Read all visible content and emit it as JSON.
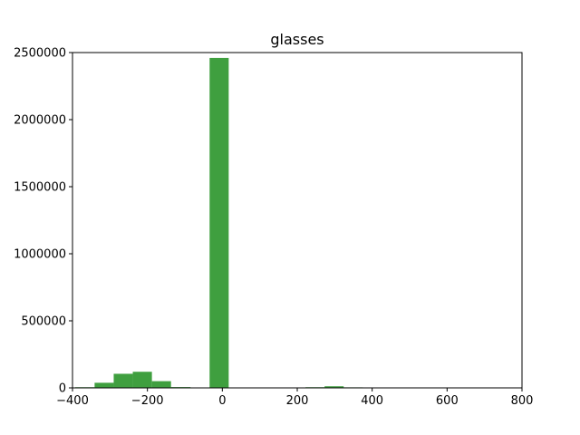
{
  "chart_data": {
    "type": "bar",
    "title": "glasses",
    "xlabel": "",
    "ylabel": "",
    "xlim": [
      -400,
      800
    ],
    "ylim": [
      0,
      2500000
    ],
    "xticks": [
      -400,
      -200,
      0,
      200,
      400,
      600,
      800
    ],
    "xtick_labels": [
      "−400",
      "−200",
      "0",
      "200",
      "400",
      "600",
      "800"
    ],
    "yticks": [
      0,
      500000,
      1000000,
      1500000,
      2000000,
      2500000
    ],
    "ytick_labels": [
      "0",
      "500000",
      "1000000",
      "1500000",
      "2000000",
      "2500000"
    ],
    "grid": false,
    "bar_color": "#3f9f3f",
    "bins": [
      {
        "x0": -393,
        "x1": -341,
        "value": 5000
      },
      {
        "x0": -341,
        "x1": -290,
        "value": 38000
      },
      {
        "x0": -290,
        "x1": -239,
        "value": 105000
      },
      {
        "x0": -239,
        "x1": -188,
        "value": 120000
      },
      {
        "x0": -188,
        "x1": -137,
        "value": 50000
      },
      {
        "x0": -137,
        "x1": -85,
        "value": 6000
      },
      {
        "x0": -85,
        "x1": -34,
        "value": 0
      },
      {
        "x0": -34,
        "x1": 17,
        "value": 2460000
      },
      {
        "x0": 17,
        "x1": 68,
        "value": 0
      },
      {
        "x0": 68,
        "x1": 119,
        "value": 0
      },
      {
        "x0": 119,
        "x1": 171,
        "value": 3000
      },
      {
        "x0": 171,
        "x1": 222,
        "value": 3000
      },
      {
        "x0": 222,
        "x1": 273,
        "value": 5000
      },
      {
        "x0": 273,
        "x1": 324,
        "value": 12000
      },
      {
        "x0": 324,
        "x1": 375,
        "value": 4000
      },
      {
        "x0": 375,
        "x1": 427,
        "value": 1000
      }
    ]
  }
}
